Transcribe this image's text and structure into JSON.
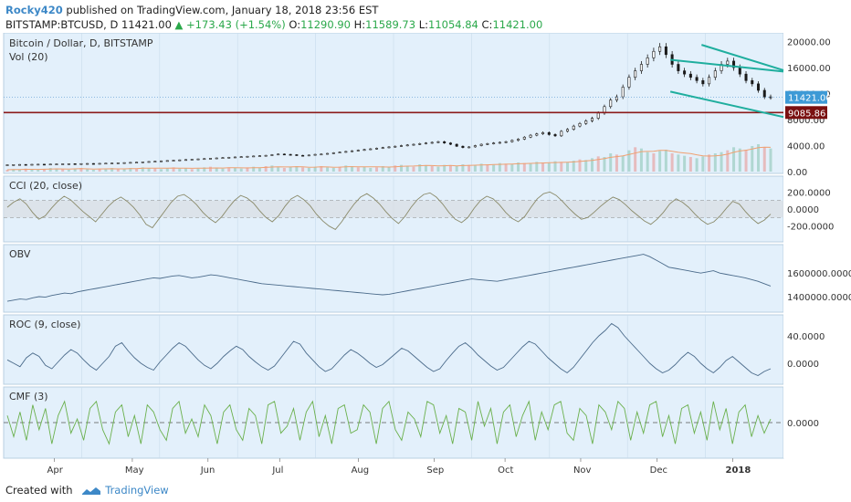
{
  "header": {
    "author": "Rocky420",
    "published": "published on TradingView.com, January 18, 2018 23:56 EST",
    "symbol": "BITSTAMP:BTCUSD, D",
    "last": "11421.00",
    "change": "▲ +173.43 (+1.54%)",
    "o_label": "O:",
    "o": "11290.90",
    "h_label": "H:",
    "h": "11589.73",
    "l_label": "L:",
    "l": "11054.84",
    "c_label": "C:",
    "c": "11421.00"
  },
  "footer": {
    "created_with": "Created with",
    "brand": "TradingView"
  },
  "colors": {
    "panel_bg": "#e3f0fb",
    "grid": "#c8dbeb",
    "candle": "#1a1a1a",
    "channel": "#1fae9e",
    "support": "#8b1a1a",
    "volume_ma": "#f0a070",
    "cci": "#8a8a6a",
    "obv": "#4a6a8a",
    "roc": "#4a6a8a",
    "cmf": "#6ab04c",
    "price_badge": "#3d9ad6",
    "support_badge": "#7a1010"
  },
  "chart_data": {
    "type": "candlestick",
    "price_panel": {
      "title": "Bitcoin / Dollar, D, BITSTAMP",
      "volume_label": "Vol (20)",
      "y_ticks": [
        "20000.00",
        "16000.00",
        "12000.00",
        "8000.00",
        "4000.00",
        "0.00"
      ],
      "y_range": [
        0,
        20500
      ],
      "last_price_label": "11421.00",
      "last_price": 11421,
      "support_label": "9085.86",
      "support": 9085.86,
      "channel_upper": [
        [
          0.855,
          17200
        ],
        [
          1.0,
          15400
        ]
      ],
      "channel_lower": [
        [
          0.855,
          12300
        ],
        [
          1.0,
          8400
        ]
      ],
      "channel_start_upper": [
        [
          0.895,
          19500
        ],
        [
          1.0,
          15600
        ]
      ],
      "close_series": [
        1050,
        1080,
        1100,
        1090,
        1120,
        1140,
        1130,
        1160,
        1180,
        1200,
        1220,
        1210,
        1230,
        1250,
        1240,
        1270,
        1300,
        1320,
        1350,
        1380,
        1420,
        1450,
        1500,
        1550,
        1600,
        1650,
        1700,
        1750,
        1800,
        1850,
        1900,
        1950,
        2000,
        2050,
        2100,
        2150,
        2200,
        2250,
        2300,
        2350,
        2400,
        2450,
        2500,
        2600,
        2700,
        2650,
        2600,
        2500,
        2450,
        2550,
        2650,
        2700,
        2800,
        2900,
        3000,
        3100,
        3200,
        3300,
        3400,
        3500,
        3600,
        3700,
        3800,
        3900,
        4000,
        4100,
        4200,
        4300,
        4400,
        4500,
        4600,
        4400,
        4200,
        3900,
        3700,
        3800,
        4000,
        4200,
        4300,
        4400,
        4500,
        4600,
        4800,
        5000,
        5300,
        5600,
        5800,
        6000,
        5700,
        5500,
        6200,
        6500,
        7000,
        7400,
        7800,
        8200,
        9000,
        10000,
        11000,
        11500,
        13000,
        14500,
        15500,
        16500,
        17500,
        18500,
        19200,
        18000,
        16500,
        15500,
        15000,
        14500,
        14000,
        13500,
        14500,
        15500,
        16500,
        17000,
        16000,
        15000,
        14000,
        13500,
        12500,
        11500,
        11421
      ],
      "volume_series": [
        3,
        4,
        3,
        5,
        4,
        3,
        4,
        6,
        5,
        4,
        3,
        5,
        6,
        4,
        3,
        5,
        4,
        6,
        5,
        4,
        6,
        5,
        7,
        6,
        5,
        4,
        6,
        7,
        5,
        6,
        4,
        5,
        7,
        8,
        6,
        5,
        7,
        6,
        5,
        7,
        8,
        6,
        9,
        10,
        7,
        6,
        8,
        9,
        7,
        6,
        8,
        9,
        7,
        6,
        8,
        10,
        9,
        7,
        8,
        6,
        7,
        9,
        8,
        10,
        11,
        9,
        8,
        12,
        10,
        9,
        8,
        11,
        10,
        9,
        12,
        11,
        10,
        13,
        12,
        11,
        14,
        13,
        12,
        15,
        14,
        13,
        16,
        15,
        14,
        17,
        16,
        15,
        18,
        20,
        19,
        22,
        25,
        24,
        30,
        28,
        26,
        35,
        40,
        38,
        32,
        30,
        34,
        36,
        30,
        28,
        26,
        24,
        22,
        25,
        28,
        30,
        32,
        35,
        40,
        38,
        36,
        42,
        45,
        40,
        38
      ]
    },
    "x_axis_ticks": [
      "Apr",
      "May",
      "Jun",
      "Jul",
      "Aug",
      "Sep",
      "Oct",
      "Nov",
      "Dec",
      "2018"
    ],
    "indicators": [
      {
        "name": "CCI (20, close)",
        "y_ticks": [
          "200.0000",
          "0.0000",
          "-200.0000"
        ],
        "y_range": [
          -300,
          300
        ],
        "band": [
          -100,
          100
        ],
        "series": [
          20,
          80,
          120,
          60,
          -40,
          -120,
          -80,
          10,
          90,
          150,
          110,
          40,
          -30,
          -90,
          -150,
          -60,
          30,
          100,
          140,
          90,
          20,
          -70,
          -180,
          -220,
          -120,
          -20,
          80,
          150,
          170,
          120,
          50,
          -40,
          -110,
          -160,
          -90,
          10,
          100,
          160,
          130,
          70,
          -20,
          -100,
          -150,
          -80,
          30,
          120,
          160,
          110,
          40,
          -60,
          -140,
          -200,
          -240,
          -150,
          -40,
          60,
          140,
          180,
          130,
          60,
          -30,
          -110,
          -170,
          -90,
          20,
          110,
          170,
          190,
          140,
          60,
          -40,
          -120,
          -160,
          -100,
          10,
          100,
          150,
          120,
          50,
          -40,
          -110,
          -150,
          -90,
          20,
          120,
          180,
          200,
          160,
          90,
          10,
          -60,
          -120,
          -100,
          -40,
          30,
          90,
          140,
          110,
          50,
          -20,
          -80,
          -140,
          -180,
          -120,
          -40,
          60,
          120,
          80,
          20,
          -60,
          -130,
          -180,
          -150,
          -80,
          10,
          90,
          60,
          -30,
          -110,
          -170,
          -130,
          -60
        ]
      },
      {
        "name": "OBV",
        "y_ticks": [
          "1600000.0000",
          "1400000.0000"
        ],
        "y_range": [
          1330000,
          1780000
        ],
        "series": [
          1360000,
          1370000,
          1380000,
          1375000,
          1390000,
          1400000,
          1395000,
          1410000,
          1420000,
          1430000,
          1425000,
          1440000,
          1450000,
          1460000,
          1470000,
          1480000,
          1490000,
          1500000,
          1510000,
          1520000,
          1530000,
          1540000,
          1550000,
          1560000,
          1555000,
          1565000,
          1575000,
          1580000,
          1570000,
          1560000,
          1565000,
          1575000,
          1585000,
          1580000,
          1570000,
          1560000,
          1550000,
          1540000,
          1530000,
          1520000,
          1510000,
          1505000,
          1500000,
          1495000,
          1490000,
          1485000,
          1480000,
          1475000,
          1470000,
          1465000,
          1460000,
          1455000,
          1450000,
          1445000,
          1440000,
          1435000,
          1430000,
          1425000,
          1420000,
          1415000,
          1420000,
          1430000,
          1440000,
          1450000,
          1460000,
          1470000,
          1480000,
          1490000,
          1500000,
          1510000,
          1520000,
          1530000,
          1540000,
          1550000,
          1545000,
          1540000,
          1535000,
          1530000,
          1540000,
          1550000,
          1560000,
          1570000,
          1580000,
          1590000,
          1600000,
          1610000,
          1620000,
          1630000,
          1640000,
          1650000,
          1660000,
          1670000,
          1680000,
          1690000,
          1700000,
          1710000,
          1720000,
          1730000,
          1740000,
          1750000,
          1760000,
          1740000,
          1710000,
          1680000,
          1650000,
          1640000,
          1630000,
          1620000,
          1610000,
          1600000,
          1610000,
          1620000,
          1600000,
          1590000,
          1580000,
          1570000,
          1560000,
          1545000,
          1530000,
          1510000,
          1490000
        ]
      },
      {
        "name": "ROC (9, close)",
        "y_ticks": [
          "40.0000",
          "0.0000"
        ],
        "y_range": [
          -20,
          60
        ],
        "series": [
          5,
          0,
          -5,
          8,
          15,
          10,
          -3,
          -8,
          2,
          12,
          20,
          15,
          5,
          -4,
          -10,
          0,
          10,
          25,
          30,
          18,
          8,
          0,
          -6,
          -10,
          2,
          12,
          22,
          30,
          25,
          15,
          5,
          -3,
          -8,
          0,
          10,
          18,
          25,
          20,
          10,
          2,
          -5,
          -10,
          -4,
          8,
          20,
          32,
          28,
          15,
          5,
          -5,
          -12,
          -8,
          2,
          12,
          20,
          15,
          8,
          0,
          -6,
          -2,
          6,
          14,
          22,
          18,
          10,
          2,
          -6,
          -12,
          -8,
          4,
          15,
          25,
          30,
          22,
          12,
          4,
          -4,
          -10,
          -6,
          4,
          14,
          24,
          32,
          28,
          18,
          8,
          0,
          -8,
          -14,
          -6,
          6,
          18,
          30,
          40,
          48,
          58,
          52,
          40,
          30,
          20,
          10,
          0,
          -8,
          -14,
          -10,
          -2,
          8,
          16,
          10,
          0,
          -8,
          -14,
          -6,
          4,
          10,
          2,
          -6,
          -14,
          -18,
          -12,
          -8
        ]
      },
      {
        "name": "CMF (3)",
        "y_ticks": [
          "0.0000"
        ],
        "y_range": [
          -0.8,
          0.8
        ],
        "series": [
          0.2,
          -0.4,
          0.3,
          -0.5,
          0.5,
          -0.2,
          0.4,
          -0.6,
          0.2,
          0.6,
          -0.3,
          0.1,
          -0.5,
          0.4,
          0.6,
          -0.2,
          -0.6,
          0.3,
          0.5,
          -0.4,
          0.2,
          -0.6,
          0.5,
          0.3,
          -0.2,
          -0.5,
          0.4,
          0.6,
          -0.3,
          0.1,
          -0.4,
          0.5,
          0.2,
          -0.6,
          0.3,
          0.5,
          -0.2,
          -0.5,
          0.4,
          0.2,
          -0.6,
          0.5,
          0.6,
          -0.3,
          -0.1,
          0.4,
          -0.5,
          0.3,
          0.6,
          -0.4,
          0.2,
          -0.6,
          0.4,
          0.5,
          -0.3,
          -0.2,
          0.5,
          0.3,
          -0.6,
          0.4,
          0.6,
          -0.2,
          -0.5,
          0.3,
          0.1,
          -0.4,
          0.6,
          0.5,
          -0.3,
          0.2,
          -0.6,
          0.4,
          0.3,
          -0.5,
          0.6,
          -0.1,
          0.4,
          -0.6,
          0.3,
          0.5,
          -0.4,
          0.2,
          0.6,
          -0.5,
          0.3,
          -0.2,
          0.5,
          0.6,
          -0.3,
          -0.5,
          0.4,
          0.2,
          -0.6,
          0.5,
          0.3,
          -0.2,
          0.6,
          0.4,
          -0.5,
          0.3,
          -0.3,
          0.5,
          0.6,
          -0.4,
          0.2,
          -0.6,
          0.4,
          0.5,
          -0.3,
          0.3,
          -0.5,
          0.6,
          -0.2,
          0.4,
          -0.6,
          0.3,
          0.5,
          -0.4,
          0.2,
          -0.3,
          0.1
        ]
      }
    ]
  }
}
